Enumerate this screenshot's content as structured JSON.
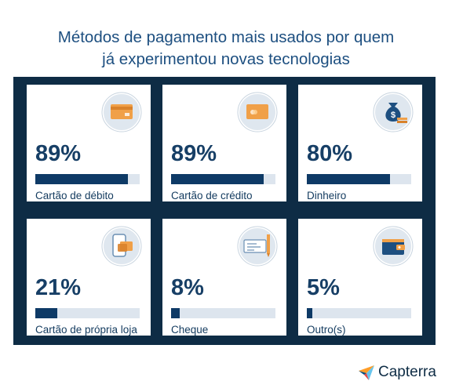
{
  "title_line1": "Métodos de pagamento mais usados por quem",
  "title_line2": "já experimentou novas tecnologias",
  "colors": {
    "bar_fill": "#0e3a66",
    "bar_track": "#dde5ee",
    "panel": "#0e2c45",
    "title": "#1d4f80",
    "icon_accent": "#f0a048"
  },
  "chart_data": {
    "type": "bar",
    "title": "Métodos de pagamento mais usados por quem já experimentou novas tecnologias",
    "categories": [
      "Cartão de débito",
      "Cartão de crédito",
      "Dinheiro",
      "Cartão de própria loja",
      "Cheque",
      "Outro(s)"
    ],
    "values": [
      89,
      89,
      80,
      21,
      8,
      5
    ],
    "value_labels": [
      "89%",
      "89%",
      "80%",
      "21%",
      "8%",
      "5%"
    ],
    "icons": [
      "debit-card-icon",
      "credit-card-icon",
      "money-bag-icon",
      "phone-card-icon",
      "check-icon",
      "wallet-icon"
    ],
    "ylim": [
      0,
      100
    ]
  },
  "brand": {
    "name": "Capterra"
  }
}
